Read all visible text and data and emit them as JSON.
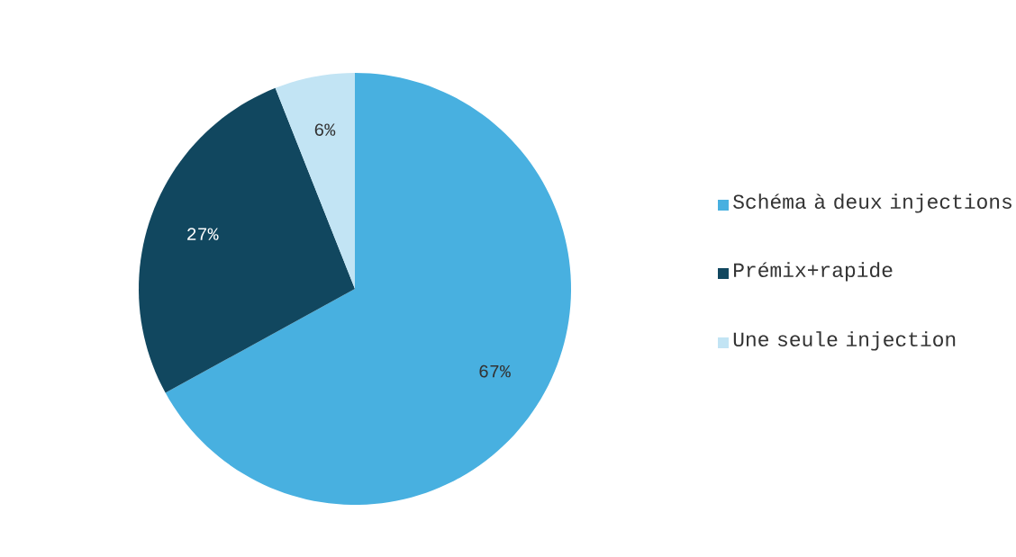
{
  "chart_data": {
    "type": "pie",
    "categories": [
      "Schéma à deux injections",
      "Prémix+rapide",
      "Une seule injection"
    ],
    "values": [
      67,
      27,
      6
    ],
    "colors": [
      "#48b0e0",
      "#11475f",
      "#c2e4f4"
    ],
    "value_labels": [
      "67%",
      "27%",
      "6%"
    ],
    "legend": "right"
  }
}
